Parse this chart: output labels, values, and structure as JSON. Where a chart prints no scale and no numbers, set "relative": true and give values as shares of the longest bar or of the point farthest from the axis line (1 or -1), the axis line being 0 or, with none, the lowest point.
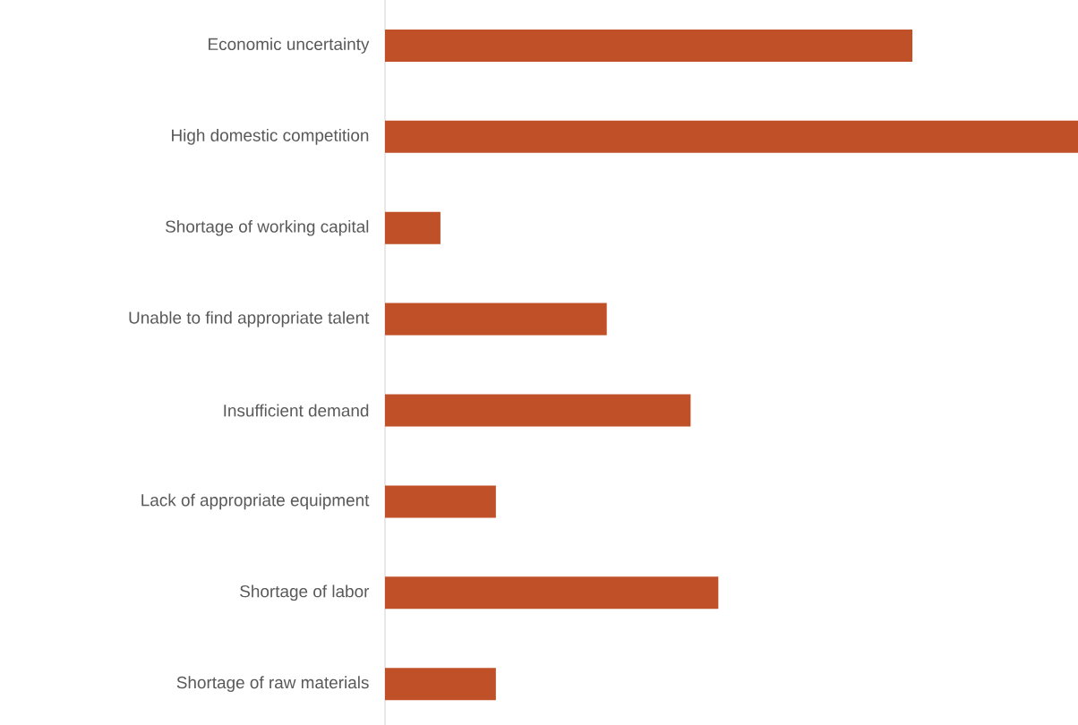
{
  "chart_data": {
    "type": "bar",
    "orientation": "horizontal",
    "relative": true,
    "color": "#c05028",
    "categories": [
      "Economic uncertainty",
      "High domestic competition",
      "Shortage of working capital",
      "Unable to find appropriate talent",
      "Insufficient demand",
      "Lack of appropriate equipment",
      "Shortage of labor",
      "Shortage of raw materials"
    ],
    "values": [
      0.761,
      1,
      0.08,
      0.32,
      0.441,
      0.16,
      0.481,
      0.16
    ]
  }
}
